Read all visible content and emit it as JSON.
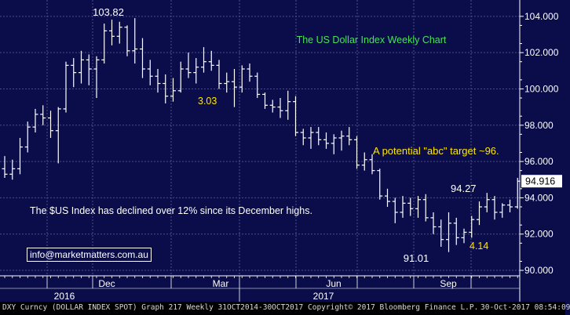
{
  "chart_data": {
    "type": "ohlc",
    "title": "The US Dollar Index Weekly Chart",
    "y_axis": {
      "min": 89.7,
      "max": 104.9,
      "ticks": [
        "104.000",
        "102.000",
        "100.000",
        "98.000",
        "96.000",
        "94.000",
        "92.000",
        "90.000"
      ],
      "grid": true,
      "position": "right"
    },
    "x_axis": {
      "month_labels": [
        "Dec",
        "Mar",
        "Jun",
        "Sep"
      ],
      "year_labels": [
        "2016",
        "2017"
      ]
    },
    "last_value_label": "94.916",
    "bars": [
      {
        "o": 95.6,
        "h": 96.3,
        "l": 95.1,
        "c": 95.3
      },
      {
        "o": 95.3,
        "h": 96.1,
        "l": 95.0,
        "c": 95.6
      },
      {
        "o": 95.6,
        "h": 97.3,
        "l": 95.3,
        "c": 96.8
      },
      {
        "o": 96.8,
        "h": 98.2,
        "l": 96.5,
        "c": 97.9
      },
      {
        "o": 97.9,
        "h": 98.9,
        "l": 97.6,
        "c": 98.6
      },
      {
        "o": 98.6,
        "h": 99.1,
        "l": 98.0,
        "c": 98.4
      },
      {
        "o": 98.4,
        "h": 98.8,
        "l": 97.3,
        "c": 97.7
      },
      {
        "o": 97.7,
        "h": 99.0,
        "l": 95.9,
        "c": 98.9
      },
      {
        "o": 98.9,
        "h": 101.5,
        "l": 98.7,
        "c": 101.3
      },
      {
        "o": 101.3,
        "h": 101.7,
        "l": 100.1,
        "c": 100.9
      },
      {
        "o": 100.9,
        "h": 102.1,
        "l": 100.3,
        "c": 101.6
      },
      {
        "o": 101.6,
        "h": 101.9,
        "l": 100.2,
        "c": 101.1
      },
      {
        "o": 101.1,
        "h": 101.8,
        "l": 99.5,
        "c": 101.6
      },
      {
        "o": 101.6,
        "h": 103.6,
        "l": 101.4,
        "c": 103.2
      },
      {
        "o": 103.2,
        "h": 103.82,
        "l": 102.4,
        "c": 102.9
      },
      {
        "o": 102.9,
        "h": 103.7,
        "l": 102.5,
        "c": 103.4
      },
      {
        "o": 103.4,
        "h": 103.5,
        "l": 101.8,
        "c": 102.1
      },
      {
        "o": 102.1,
        "h": 103.9,
        "l": 101.4,
        "c": 102.2
      },
      {
        "o": 102.2,
        "h": 102.8,
        "l": 100.6,
        "c": 101.1
      },
      {
        "o": 101.1,
        "h": 101.6,
        "l": 100.2,
        "c": 100.7
      },
      {
        "o": 100.7,
        "h": 101.1,
        "l": 99.8,
        "c": 100.3
      },
      {
        "o": 100.3,
        "h": 100.8,
        "l": 99.2,
        "c": 99.6
      },
      {
        "o": 99.6,
        "h": 100.6,
        "l": 99.3,
        "c": 99.9
      },
      {
        "o": 99.9,
        "h": 101.5,
        "l": 99.8,
        "c": 101.1
      },
      {
        "o": 101.1,
        "h": 102.0,
        "l": 100.6,
        "c": 100.9
      },
      {
        "o": 100.9,
        "h": 101.7,
        "l": 100.3,
        "c": 101.2
      },
      {
        "o": 101.2,
        "h": 102.3,
        "l": 100.9,
        "c": 101.5
      },
      {
        "o": 101.5,
        "h": 102.1,
        "l": 101.0,
        "c": 101.3
      },
      {
        "o": 101.3,
        "h": 101.6,
        "l": 100.0,
        "c": 100.3
      },
      {
        "o": 100.3,
        "h": 100.9,
        "l": 99.8,
        "c": 100.4
      },
      {
        "o": 100.4,
        "h": 101.1,
        "l": 99.0,
        "c": 100.1
      },
      {
        "o": 100.1,
        "h": 101.3,
        "l": 99.8,
        "c": 101.1
      },
      {
        "o": 101.1,
        "h": 101.4,
        "l": 100.4,
        "c": 100.7
      },
      {
        "o": 100.7,
        "h": 100.9,
        "l": 99.5,
        "c": 99.7
      },
      {
        "o": 99.7,
        "h": 99.8,
        "l": 98.9,
        "c": 99.1
      },
      {
        "o": 99.1,
        "h": 99.4,
        "l": 98.7,
        "c": 99.0
      },
      {
        "o": 99.0,
        "h": 99.5,
        "l": 98.4,
        "c": 98.8
      },
      {
        "o": 98.8,
        "h": 99.9,
        "l": 98.3,
        "c": 99.3
      },
      {
        "o": 99.3,
        "h": 99.6,
        "l": 97.4,
        "c": 97.6
      },
      {
        "o": 97.6,
        "h": 97.8,
        "l": 96.9,
        "c": 97.3
      },
      {
        "o": 97.3,
        "h": 97.9,
        "l": 96.7,
        "c": 97.6
      },
      {
        "o": 97.6,
        "h": 97.9,
        "l": 96.9,
        "c": 97.2
      },
      {
        "o": 97.2,
        "h": 97.6,
        "l": 96.7,
        "c": 97.0
      },
      {
        "o": 97.0,
        "h": 97.5,
        "l": 96.4,
        "c": 97.3
      },
      {
        "o": 97.3,
        "h": 97.7,
        "l": 96.6,
        "c": 97.4
      },
      {
        "o": 97.4,
        "h": 97.9,
        "l": 96.9,
        "c": 97.2
      },
      {
        "o": 97.2,
        "h": 97.4,
        "l": 95.6,
        "c": 95.8
      },
      {
        "o": 95.8,
        "h": 96.5,
        "l": 95.5,
        "c": 96.1
      },
      {
        "o": 96.1,
        "h": 96.4,
        "l": 95.3,
        "c": 95.5
      },
      {
        "o": 95.5,
        "h": 95.6,
        "l": 93.9,
        "c": 94.1
      },
      {
        "o": 94.1,
        "h": 94.5,
        "l": 93.5,
        "c": 93.8
      },
      {
        "o": 93.8,
        "h": 94.0,
        "l": 92.6,
        "c": 93.2
      },
      {
        "o": 93.2,
        "h": 94.1,
        "l": 92.9,
        "c": 93.7
      },
      {
        "o": 93.7,
        "h": 94.0,
        "l": 93.0,
        "c": 93.4
      },
      {
        "o": 93.4,
        "h": 94.1,
        "l": 92.9,
        "c": 93.9
      },
      {
        "o": 93.9,
        "h": 94.2,
        "l": 92.7,
        "c": 92.9
      },
      {
        "o": 92.9,
        "h": 93.2,
        "l": 92.0,
        "c": 92.4
      },
      {
        "o": 92.4,
        "h": 92.8,
        "l": 91.3,
        "c": 91.7
      },
      {
        "o": 91.7,
        "h": 93.2,
        "l": 91.01,
        "c": 92.6
      },
      {
        "o": 92.6,
        "h": 92.9,
        "l": 91.4,
        "c": 91.8
      },
      {
        "o": 91.8,
        "h": 92.3,
        "l": 91.5,
        "c": 92.1
      },
      {
        "o": 92.1,
        "h": 93.0,
        "l": 91.8,
        "c": 92.8
      },
      {
        "o": 92.8,
        "h": 93.8,
        "l": 92.5,
        "c": 93.5
      },
      {
        "o": 93.5,
        "h": 94.27,
        "l": 93.2,
        "c": 93.9
      },
      {
        "o": 93.9,
        "h": 94.1,
        "l": 92.8,
        "c": 93.2
      },
      {
        "o": 93.2,
        "h": 93.7,
        "l": 92.9,
        "c": 93.6
      },
      {
        "o": 93.6,
        "h": 93.9,
        "l": 93.2,
        "c": 93.5
      },
      {
        "o": 93.5,
        "h": 95.1,
        "l": 93.4,
        "c": 94.916
      }
    ],
    "annotations": [
      {
        "text": "103.82",
        "color": "#ffffff"
      },
      {
        "text": "3.03",
        "color": "#ffe600"
      },
      {
        "text": "A potential \"abc\" target ~96.",
        "color": "#ffe600"
      },
      {
        "text": "94.27",
        "color": "#ffffff"
      },
      {
        "text": "91.01",
        "color": "#ffffff"
      },
      {
        "text": "4.14",
        "color": "#ffe600"
      },
      {
        "text": "The $US Index has declined over 12% since its December highs.",
        "color": "#ffffff"
      }
    ],
    "colors": {
      "background": "#0a0d4a",
      "bars": "#ffffff",
      "grid": "#4a4e88",
      "title": "#49e05a",
      "highlight": "#ffe600",
      "axis_text": "#ffffff"
    }
  },
  "contact": {
    "email": "info@marketmatters.com.au"
  },
  "footer": {
    "source": "DXY Curncy (DOLLAR INDEX SPOT) Graph 217  Weekly 31OCT2014-30OCT2017",
    "copyright": "Copyright© 2017 Bloomberg Finance L.P.",
    "timestamp": "30-Oct-2017 08:54:09"
  }
}
